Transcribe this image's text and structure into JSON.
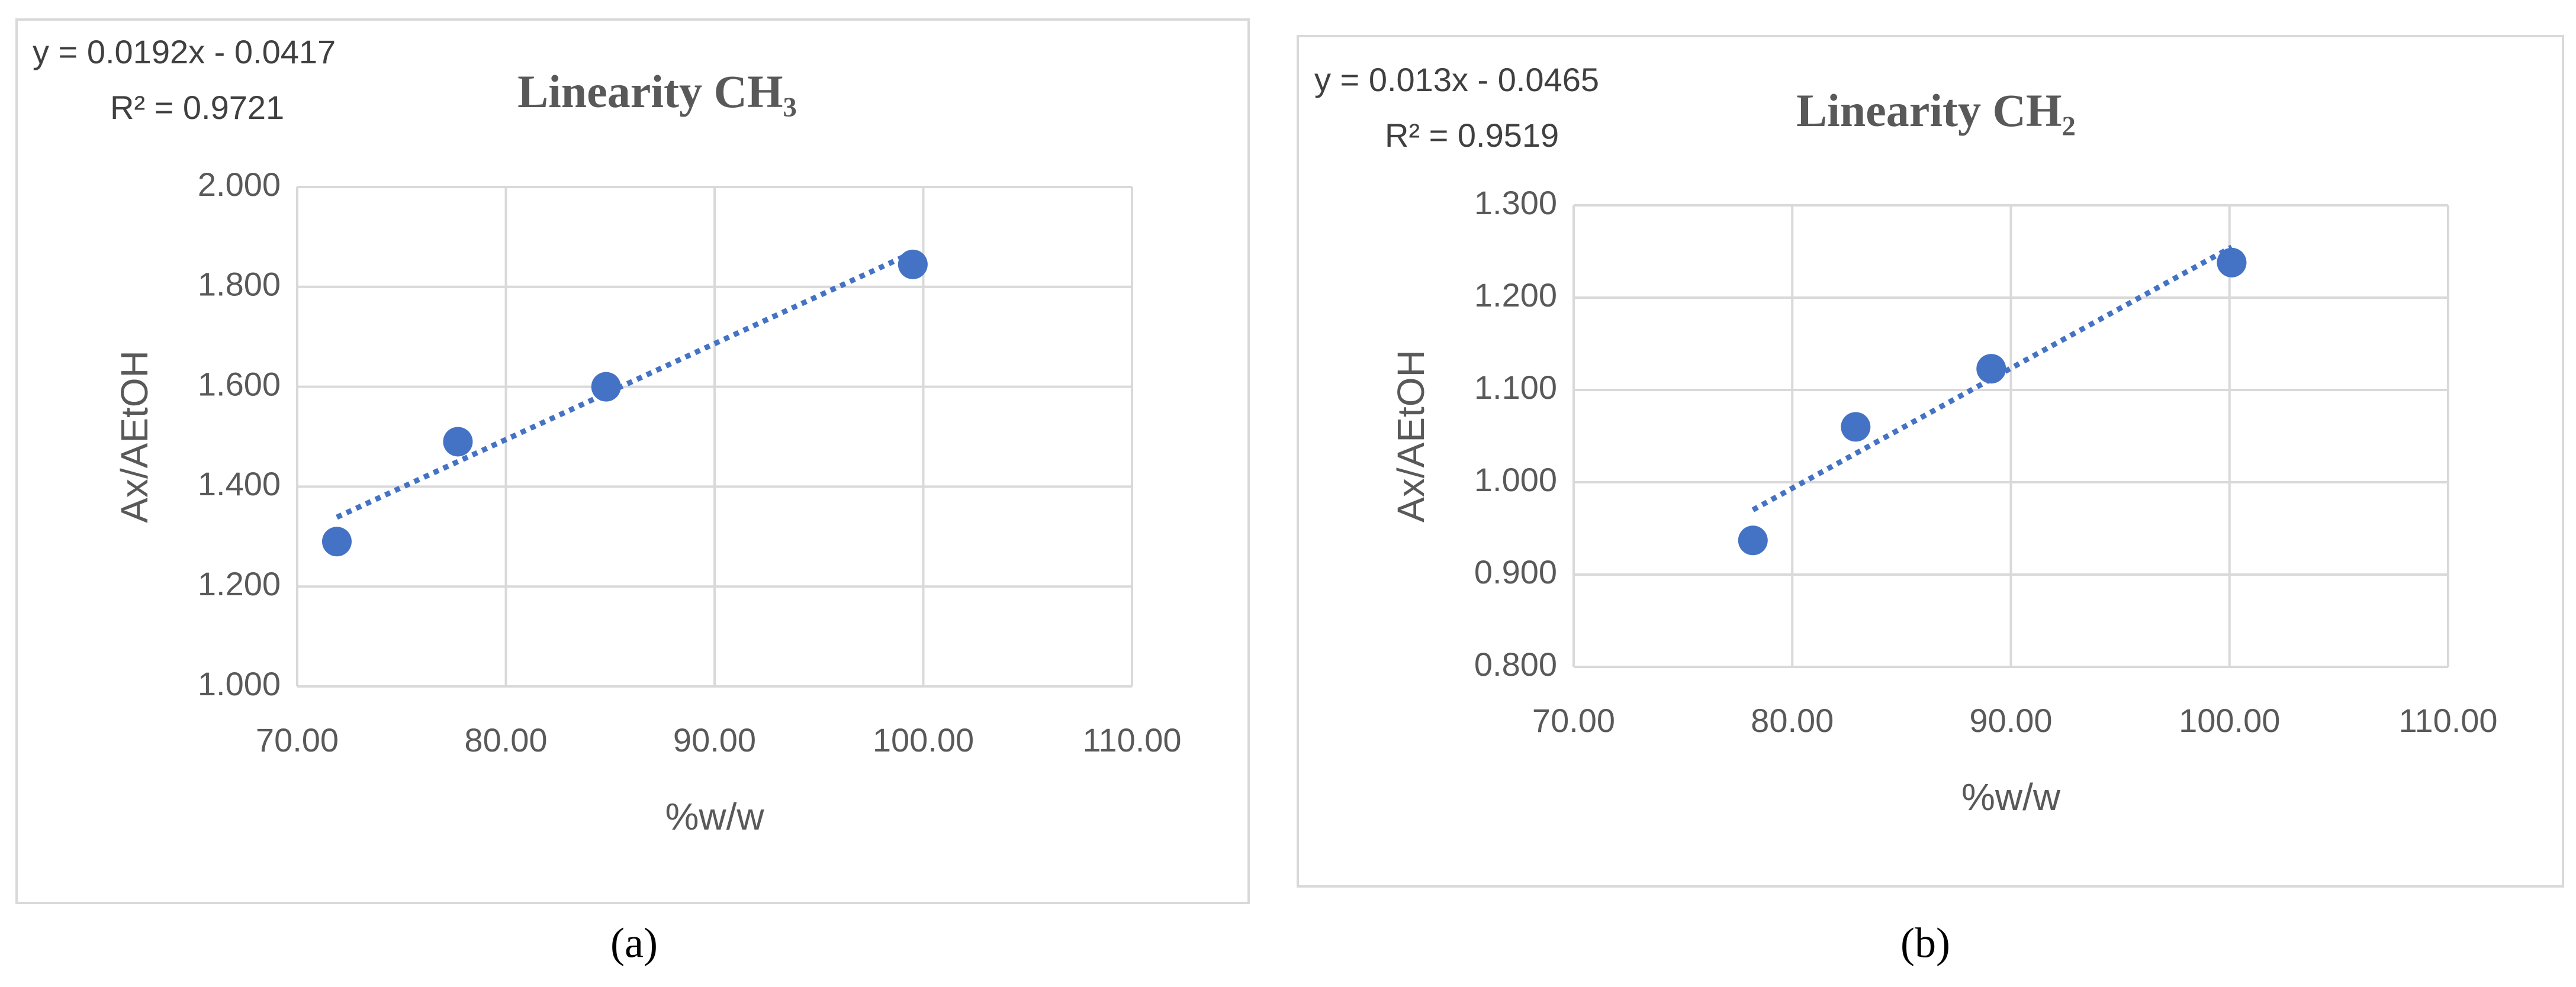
{
  "chart_data": [
    {
      "type": "scatter",
      "title": "Linearity CH₃",
      "x_label": "%w/w",
      "y_label": "Ax/AEtOH",
      "caption": "(a)",
      "trendline": {
        "label": "y = 0.0192x - 0.0417",
        "r2_label": "R² = 0.9721",
        "slope": 0.0192,
        "intercept": -0.0417
      },
      "x": [
        71.9,
        77.7,
        84.8,
        99.5
      ],
      "values": [
        1.29,
        1.49,
        1.6,
        1.845
      ],
      "color": "#4472c4",
      "xlim": [
        70,
        110
      ],
      "xticks": [
        {
          "value": 70,
          "label": "70.00"
        },
        {
          "value": 80,
          "label": "80.00"
        },
        {
          "value": 90,
          "label": "90.00"
        },
        {
          "value": 100,
          "label": "100.00"
        },
        {
          "value": 110,
          "label": "110.00"
        }
      ],
      "ylim": [
        1,
        2
      ],
      "yticks": [
        {
          "value": 1,
          "label": "1.000"
        },
        {
          "value": 1.2,
          "label": "1.200"
        },
        {
          "value": 1.4,
          "label": "1.400"
        },
        {
          "value": 1.6,
          "label": "1.600"
        },
        {
          "value": 1.8,
          "label": "1.800"
        },
        {
          "value": 2,
          "label": "2.000"
        }
      ],
      "grid": true
    },
    {
      "type": "scatter",
      "title": "Linearity CH₂",
      "x_label": "%w/w",
      "y_label": "Ax/AEtOH",
      "caption": "(b)",
      "trendline": {
        "label": "y = 0.013x - 0.0465",
        "r2_label": "R² = 0.9519",
        "slope": 0.013,
        "intercept": -0.0465
      },
      "x": [
        78.2,
        82.9,
        89.1,
        100.1
      ],
      "values": [
        0.937,
        1.06,
        1.123,
        1.238
      ],
      "color": "#4472c4",
      "xlim": [
        70,
        110
      ],
      "xticks": [
        {
          "value": 70,
          "label": "70.00"
        },
        {
          "value": 80,
          "label": "80.00"
        },
        {
          "value": 90,
          "label": "90.00"
        },
        {
          "value": 100,
          "label": "100.00"
        },
        {
          "value": 110,
          "label": "110.00"
        }
      ],
      "ylim": [
        0.8,
        1.3
      ],
      "yticks": [
        {
          "value": 0.8,
          "label": "0.800"
        },
        {
          "value": 0.9,
          "label": "0.900"
        },
        {
          "value": 1.0,
          "label": "1.000"
        },
        {
          "value": 1.1,
          "label": "1.100"
        },
        {
          "value": 1.2,
          "label": "1.200"
        },
        {
          "value": 1.3,
          "label": "1.300"
        }
      ],
      "grid": true
    }
  ]
}
